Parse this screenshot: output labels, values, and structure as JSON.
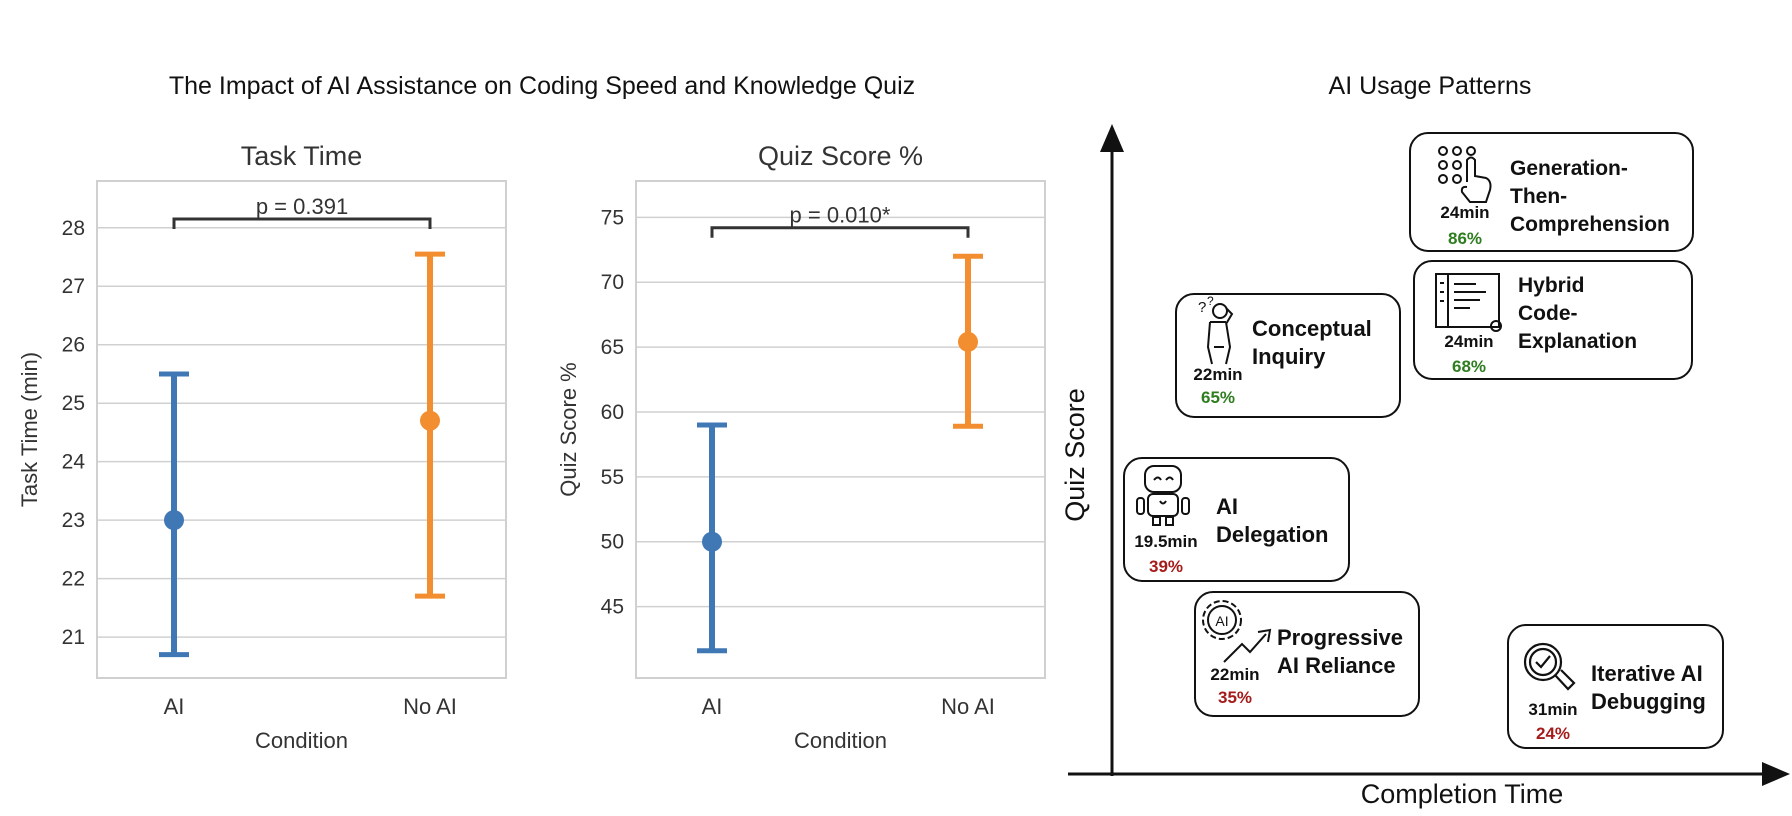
{
  "figure": {
    "left_title": "The Impact of AI Assistance on Coding Speed and Knowledge Quiz",
    "right_title": "AI Usage Patterns"
  },
  "colors": {
    "ai": "#3f78b5",
    "no_ai": "#f28e2f",
    "good": "#2e7d1f",
    "bad": "#a51c1c",
    "grid": "#d0d0d0"
  },
  "chart_data": [
    {
      "type": "scatter",
      "title": "Task Time",
      "xlabel": "Condition",
      "ylabel": "Task Time (min)",
      "categories": [
        "AI",
        "No AI"
      ],
      "ylim": [
        20.3,
        28.8
      ],
      "yticks": [
        21,
        22,
        23,
        24,
        25,
        26,
        27,
        28
      ],
      "grid": true,
      "points": [
        {
          "category": "AI",
          "mean": 23.0,
          "ci_low": 20.7,
          "ci_high": 25.5,
          "color": "#3f78b5"
        },
        {
          "category": "No AI",
          "mean": 24.7,
          "ci_low": 21.7,
          "ci_high": 27.55,
          "color": "#f28e2f"
        }
      ],
      "annotation": {
        "text": "p = 0.391",
        "y": 28.15
      }
    },
    {
      "type": "scatter",
      "title": "Quiz Score %",
      "xlabel": "Condition",
      "ylabel": "Quiz Score %",
      "categories": [
        "AI",
        "No AI"
      ],
      "ylim": [
        39.5,
        77.8
      ],
      "yticks": [
        45,
        50,
        55,
        60,
        65,
        70,
        75
      ],
      "grid": true,
      "points": [
        {
          "category": "AI",
          "mean": 50.0,
          "ci_low": 41.6,
          "ci_high": 59.0,
          "color": "#3f78b5"
        },
        {
          "category": "No AI",
          "mean": 65.4,
          "ci_low": 58.9,
          "ci_high": 72.0,
          "color": "#f28e2f"
        }
      ],
      "annotation": {
        "text": "p = 0.010*",
        "y": 74.2
      }
    },
    {
      "type": "scatter",
      "title": "AI Usage Patterns",
      "xlabel": "Completion Time",
      "ylabel": "Quiz Score",
      "points": [
        {
          "name": "Generation-Then-Comprehension",
          "label_lines": [
            "Generation-",
            "Then-",
            "Comprehension"
          ],
          "time": "24min",
          "score": "86%",
          "rating": "good",
          "icon": "dots-hand-icon"
        },
        {
          "name": "Hybrid Code-Explanation",
          "label_lines": [
            "Hybrid",
            "Code-",
            "Explanation"
          ],
          "time": "24min",
          "score": "68%",
          "rating": "good",
          "icon": "document-icon"
        },
        {
          "name": "Conceptual Inquiry",
          "label_lines": [
            "Conceptual",
            "Inquiry"
          ],
          "time": "22min",
          "score": "65%",
          "rating": "good",
          "icon": "thinking-person-icon"
        },
        {
          "name": "AI Delegation",
          "label_lines": [
            "AI",
            "Delegation"
          ],
          "time": "19.5min",
          "score": "39%",
          "rating": "bad",
          "icon": "robot-icon"
        },
        {
          "name": "Progressive AI Reliance",
          "label_lines": [
            "Progressive",
            "AI Reliance"
          ],
          "time": "22min",
          "score": "35%",
          "rating": "bad",
          "icon": "ai-gear-trend-icon"
        },
        {
          "name": "Iterative AI Debugging",
          "label_lines": [
            "Iterative AI",
            "Debugging"
          ],
          "time": "31min",
          "score": "24%",
          "rating": "bad",
          "icon": "magnifier-check-icon"
        }
      ]
    }
  ]
}
